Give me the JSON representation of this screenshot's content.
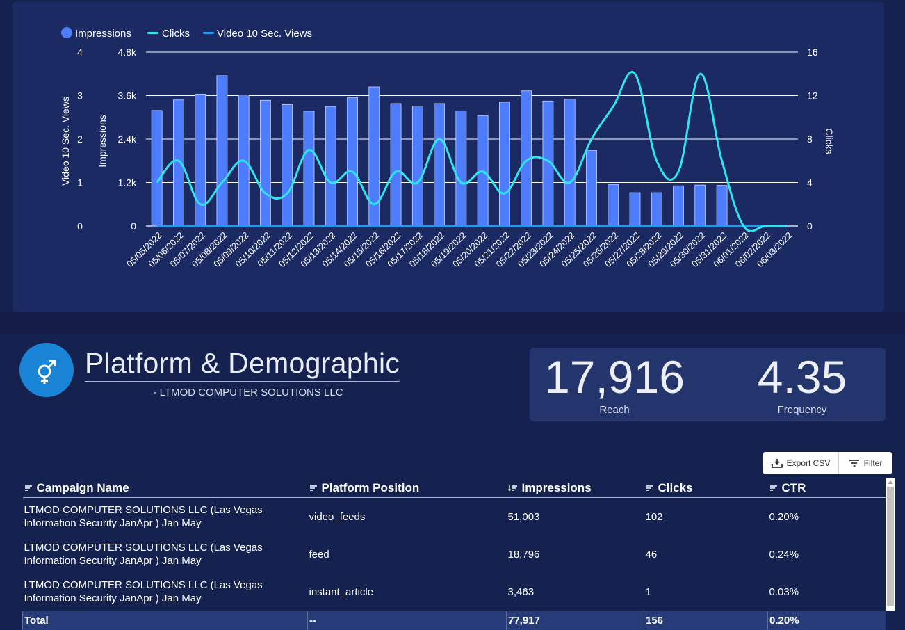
{
  "chart_data": {
    "type": "bar",
    "legend": {
      "placement": "top-left",
      "items": [
        "Impressions",
        "Clicks",
        "Video 10 Sec. Views"
      ]
    },
    "categories": [
      "05/05/2022",
      "05/06/2022",
      "05/07/2022",
      "05/08/2022",
      "05/09/2022",
      "05/10/2022",
      "05/11/2022",
      "05/12/2022",
      "05/13/2022",
      "05/14/2022",
      "05/15/2022",
      "05/16/2022",
      "05/17/2022",
      "05/18/2022",
      "05/19/2022",
      "05/20/2022",
      "05/21/2022",
      "05/22/2022",
      "05/23/2022",
      "05/24/2022",
      "05/25/2022",
      "05/26/2022",
      "05/27/2022",
      "05/28/2022",
      "05/29/2022",
      "05/30/2022",
      "05/31/2022",
      "06/01/2022",
      "06/02/2022",
      "06/03/2022"
    ],
    "series": [
      {
        "name": "Impressions",
        "type": "bar",
        "axis": "Impressions",
        "color": "#4d7cff",
        "values": [
          3190,
          3480,
          3640,
          4150,
          3620,
          3470,
          3350,
          3170,
          3300,
          3540,
          3840,
          3380,
          3310,
          3380,
          3180,
          3050,
          3420,
          3730,
          3450,
          3500,
          2090,
          1140,
          920,
          920,
          1110,
          1130,
          1120,
          0,
          0,
          0
        ]
      },
      {
        "name": "Clicks",
        "type": "line",
        "axis": "Clicks",
        "color": "#2ee6f0",
        "values": [
          4,
          6,
          2,
          4,
          6,
          3,
          3,
          7,
          4,
          5,
          2,
          5,
          4,
          8,
          4,
          5,
          3,
          6,
          6,
          4,
          8,
          11,
          14,
          6,
          5,
          14,
          6,
          0,
          0,
          0
        ]
      },
      {
        "name": "Video 10 Sec. Views",
        "type": "line",
        "axis": "Video 10 Sec. Views",
        "color": "#1e9bef",
        "values": [
          0,
          0,
          0,
          0,
          0,
          0,
          0,
          0,
          0,
          0,
          0,
          0,
          0,
          0,
          0,
          0,
          0,
          0,
          0,
          0,
          0,
          0,
          0,
          0,
          0,
          0,
          0,
          0,
          0,
          0
        ]
      }
    ],
    "axes": {
      "video": {
        "label": "Video 10 Sec. Views",
        "range": [
          0,
          4
        ],
        "ticks": [
          "0",
          "1",
          "2",
          "3",
          "4"
        ]
      },
      "impressions": {
        "label": "Impressions",
        "range": [
          0,
          4800
        ],
        "ticks": [
          "0",
          "1.2k",
          "2.4k",
          "3.6k",
          "4.8k"
        ]
      },
      "clicks": {
        "label": "Clicks",
        "range": [
          0,
          16
        ],
        "ticks": [
          "0",
          "4",
          "8",
          "12",
          "16"
        ]
      }
    },
    "grid": true
  },
  "section": {
    "title": "Platform & Demographic",
    "subtitle": "- LTMOD COMPUTER SOLUTIONS LLC",
    "icon": "gender-icon"
  },
  "kpis": {
    "reach": {
      "value": "17,916",
      "label": "Reach"
    },
    "frequency": {
      "value": "4.35",
      "label": "Frequency"
    }
  },
  "toolbar": {
    "export_label": "Export CSV",
    "filter_label": "Filter"
  },
  "table": {
    "columns": [
      "Campaign Name",
      "Platform Position",
      "Impressions",
      "Clicks",
      "CTR"
    ],
    "rows": [
      {
        "campaign": "LTMOD COMPUTER SOLUTIONS LLC (Las Vegas Information Security JanApr ) Jan May",
        "position": "video_feeds",
        "impressions": "51,003",
        "clicks": "102",
        "ctr": "0.20%"
      },
      {
        "campaign": "LTMOD COMPUTER SOLUTIONS LLC (Las Vegas Information Security JanApr ) Jan May",
        "position": "feed",
        "impressions": "18,796",
        "clicks": "46",
        "ctr": "0.24%"
      },
      {
        "campaign": "LTMOD COMPUTER SOLUTIONS LLC (Las Vegas Information Security JanApr ) Jan May",
        "position": "instant_article",
        "impressions": "3,463",
        "clicks": "1",
        "ctr": "0.03%"
      }
    ],
    "total": {
      "label": "Total",
      "position": "--",
      "impressions": "77,917",
      "clicks": "156",
      "ctr": "0.20%"
    }
  }
}
